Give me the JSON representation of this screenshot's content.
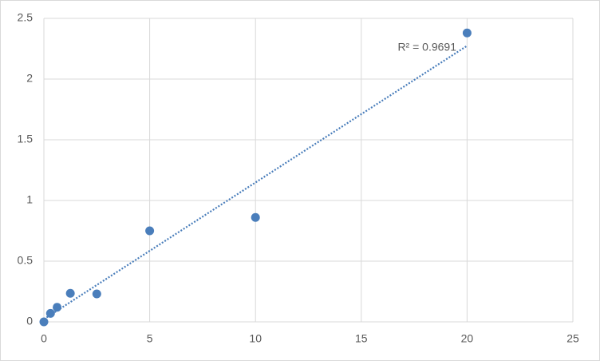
{
  "chart_data": {
    "type": "scatter",
    "series": [
      {
        "color": "#4a7ebb",
        "x": [
          0,
          0.3125,
          0.625,
          1.25,
          2.5,
          5,
          10,
          20
        ],
        "values": [
          0,
          0.07,
          0.12,
          0.235,
          0.23,
          0.75,
          0.86,
          2.38
        ]
      }
    ],
    "trendline": {
      "x": [
        0,
        20
      ],
      "y": [
        0.022,
        2.274
      ],
      "color": "#4a7ebb",
      "annotation": "R² = 0.9691"
    },
    "xlim": [
      0,
      25
    ],
    "xticks": [
      0,
      5,
      10,
      15,
      20,
      25
    ],
    "ylim": [
      0,
      2.5
    ],
    "yticks": [
      0,
      0.5,
      1,
      1.5,
      2,
      2.5
    ],
    "grid": true
  }
}
